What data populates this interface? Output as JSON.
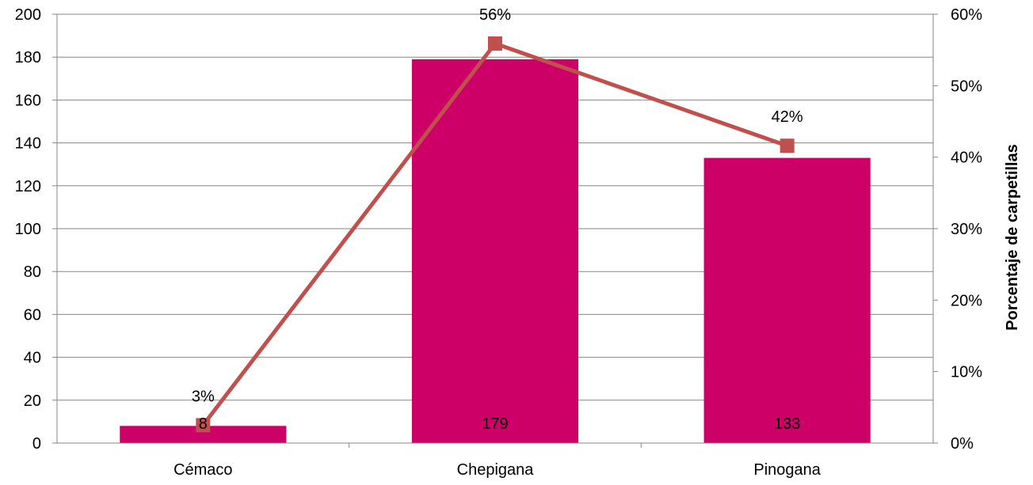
{
  "chart_data": {
    "type": "bar",
    "categories": [
      "Cémaco",
      "Chepigana",
      "Pinogana"
    ],
    "series": [
      {
        "type": "bar",
        "axis": "left",
        "color": "#CC0066",
        "values": [
          8,
          179,
          133
        ],
        "labels": [
          "8",
          "179",
          "133"
        ]
      },
      {
        "type": "line",
        "axis": "right",
        "color": "#C0504D",
        "marker": "square",
        "values": [
          0.025,
          0.559,
          0.416
        ],
        "labels": [
          "3%",
          "56%",
          "42%"
        ]
      }
    ],
    "y_left": {
      "min": 0,
      "max": 200,
      "ticks": [
        "0",
        "20",
        "40",
        "60",
        "80",
        "100",
        "120",
        "140",
        "160",
        "180",
        "200"
      ]
    },
    "y_right": {
      "min": 0,
      "max": 0.6,
      "label": "Porcentaje de carpetillas",
      "ticks": [
        "0%",
        "10%",
        "20%",
        "30%",
        "40%",
        "50%",
        "60%"
      ]
    },
    "grid": true,
    "legend": "none"
  }
}
